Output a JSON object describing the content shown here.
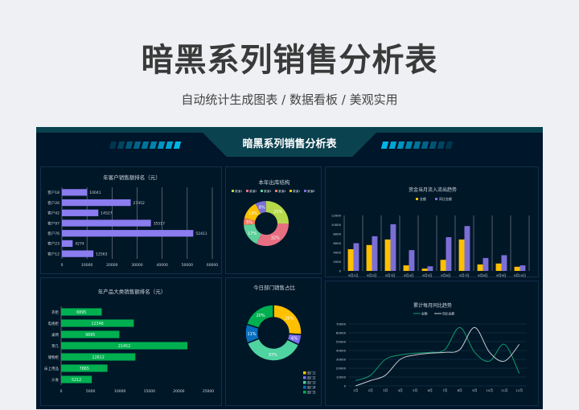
{
  "page": {
    "title": "暗黑系列销售分析表",
    "subtitle": "自动统计生成图表 / 数据看板 / 美观实用"
  },
  "dashboard": {
    "title": "暗黑系列销售分析表",
    "accent": "#00b4e6"
  },
  "chart_data": [
    {
      "id": "customer",
      "type": "bar",
      "orientation": "horizontal",
      "title": "年客户销售额排名（元）",
      "categories": [
        "客户18",
        "客户26",
        "客户42",
        "客户97",
        "客户76",
        "客户23",
        "客户12"
      ],
      "values": [
        10041,
        27452,
        14527,
        35517,
        52411,
        4274,
        12563
      ],
      "xlim": [
        0,
        60000
      ],
      "xticks": [
        0,
        10000,
        20000,
        30000,
        40000,
        50000,
        60000
      ],
      "color": "#8b7cf0",
      "grid": true
    },
    {
      "id": "outbound",
      "type": "pie",
      "donut": true,
      "title": "本年出库结构",
      "labels": [
        "渠道1",
        "渠道2",
        "渠道3",
        "渠道4",
        "渠道1",
        "渠道6"
      ],
      "values": [
        25,
        32,
        17,
        5,
        13,
        8
      ],
      "colors": [
        "#b5d94a",
        "#e76f82",
        "#5ccf9a",
        "#f47a5b",
        "#ffc000",
        "#7b6fd6"
      ],
      "legend": "top"
    },
    {
      "id": "cashflow",
      "type": "bar",
      "title": "资金当月流入流出趋势",
      "categories": [
        "6月1日",
        "6月2日",
        "6月3日",
        "6月4日",
        "6月5日",
        "6月6日",
        "6月7日",
        "6月8日",
        "6月9日",
        "6月10日"
      ],
      "series": [
        {
          "name": "金额",
          "values": [
            4700,
            5600,
            6800,
            1200,
            500,
            2400,
            6800,
            1400,
            1600,
            900
          ],
          "color": "#ffc000"
        },
        {
          "name": "同比金额",
          "values": [
            6000,
            7500,
            10100,
            4500,
            1000,
            7300,
            9700,
            2800,
            3400,
            1200
          ],
          "color": "#7b6fd6"
        }
      ],
      "ylim": [
        0,
        12000
      ],
      "yticks": [
        0,
        2000,
        4000,
        6000,
        8000,
        10000,
        12000
      ],
      "legend": "top"
    },
    {
      "id": "product",
      "type": "bar",
      "orientation": "horizontal",
      "title": "年产品大类销售额排名（元）",
      "categories": [
        "衣柜",
        "电视柜",
        "桌椅",
        "茶几",
        "储物柜",
        "床上用品",
        "沙发"
      ],
      "values": [
        6895,
        12346,
        9895,
        21452,
        12612,
        7865,
        5212
      ],
      "xlim": [
        0,
        25000
      ],
      "xticks": [
        0,
        5000,
        10000,
        15000,
        20000,
        25000
      ],
      "color": "#00b050"
    },
    {
      "id": "dept",
      "type": "pie",
      "donut": true,
      "title": "今日部门销售占比",
      "labels": [
        "部门1",
        "部门2",
        "部门3",
        "部门4",
        "部门5"
      ],
      "values": [
        26,
        6,
        37,
        11,
        20
      ],
      "colors": [
        "#ffc000",
        "#7b6ff0",
        "#4fd3a0",
        "#0a6ec0",
        "#00b050"
      ],
      "legend": "bottom-right"
    },
    {
      "id": "monthly",
      "type": "line",
      "title": "累计每月同比趋势",
      "categories": [
        "1月",
        "2月",
        "3月",
        "4月",
        "5月",
        "6月",
        "7月",
        "8月",
        "9月",
        "10月",
        "11月",
        "12月"
      ],
      "series": [
        {
          "name": "金额",
          "values": [
            6000,
            12000,
            30000,
            35000,
            37000,
            38000,
            41000,
            66000,
            38000,
            28000,
            47000,
            14000
          ],
          "color": "#0f9a6e"
        },
        {
          "name": "同比金额",
          "values": [
            0,
            6000,
            12000,
            30000,
            35000,
            37000,
            38000,
            41000,
            66000,
            38000,
            28000,
            47000
          ],
          "color": "#c8ccd0"
        }
      ],
      "ylim": [
        0,
        70000
      ],
      "yticks": [
        0,
        10000,
        20000,
        30000,
        40000,
        50000,
        60000,
        70000
      ],
      "legend": "top",
      "grid": true
    }
  ]
}
